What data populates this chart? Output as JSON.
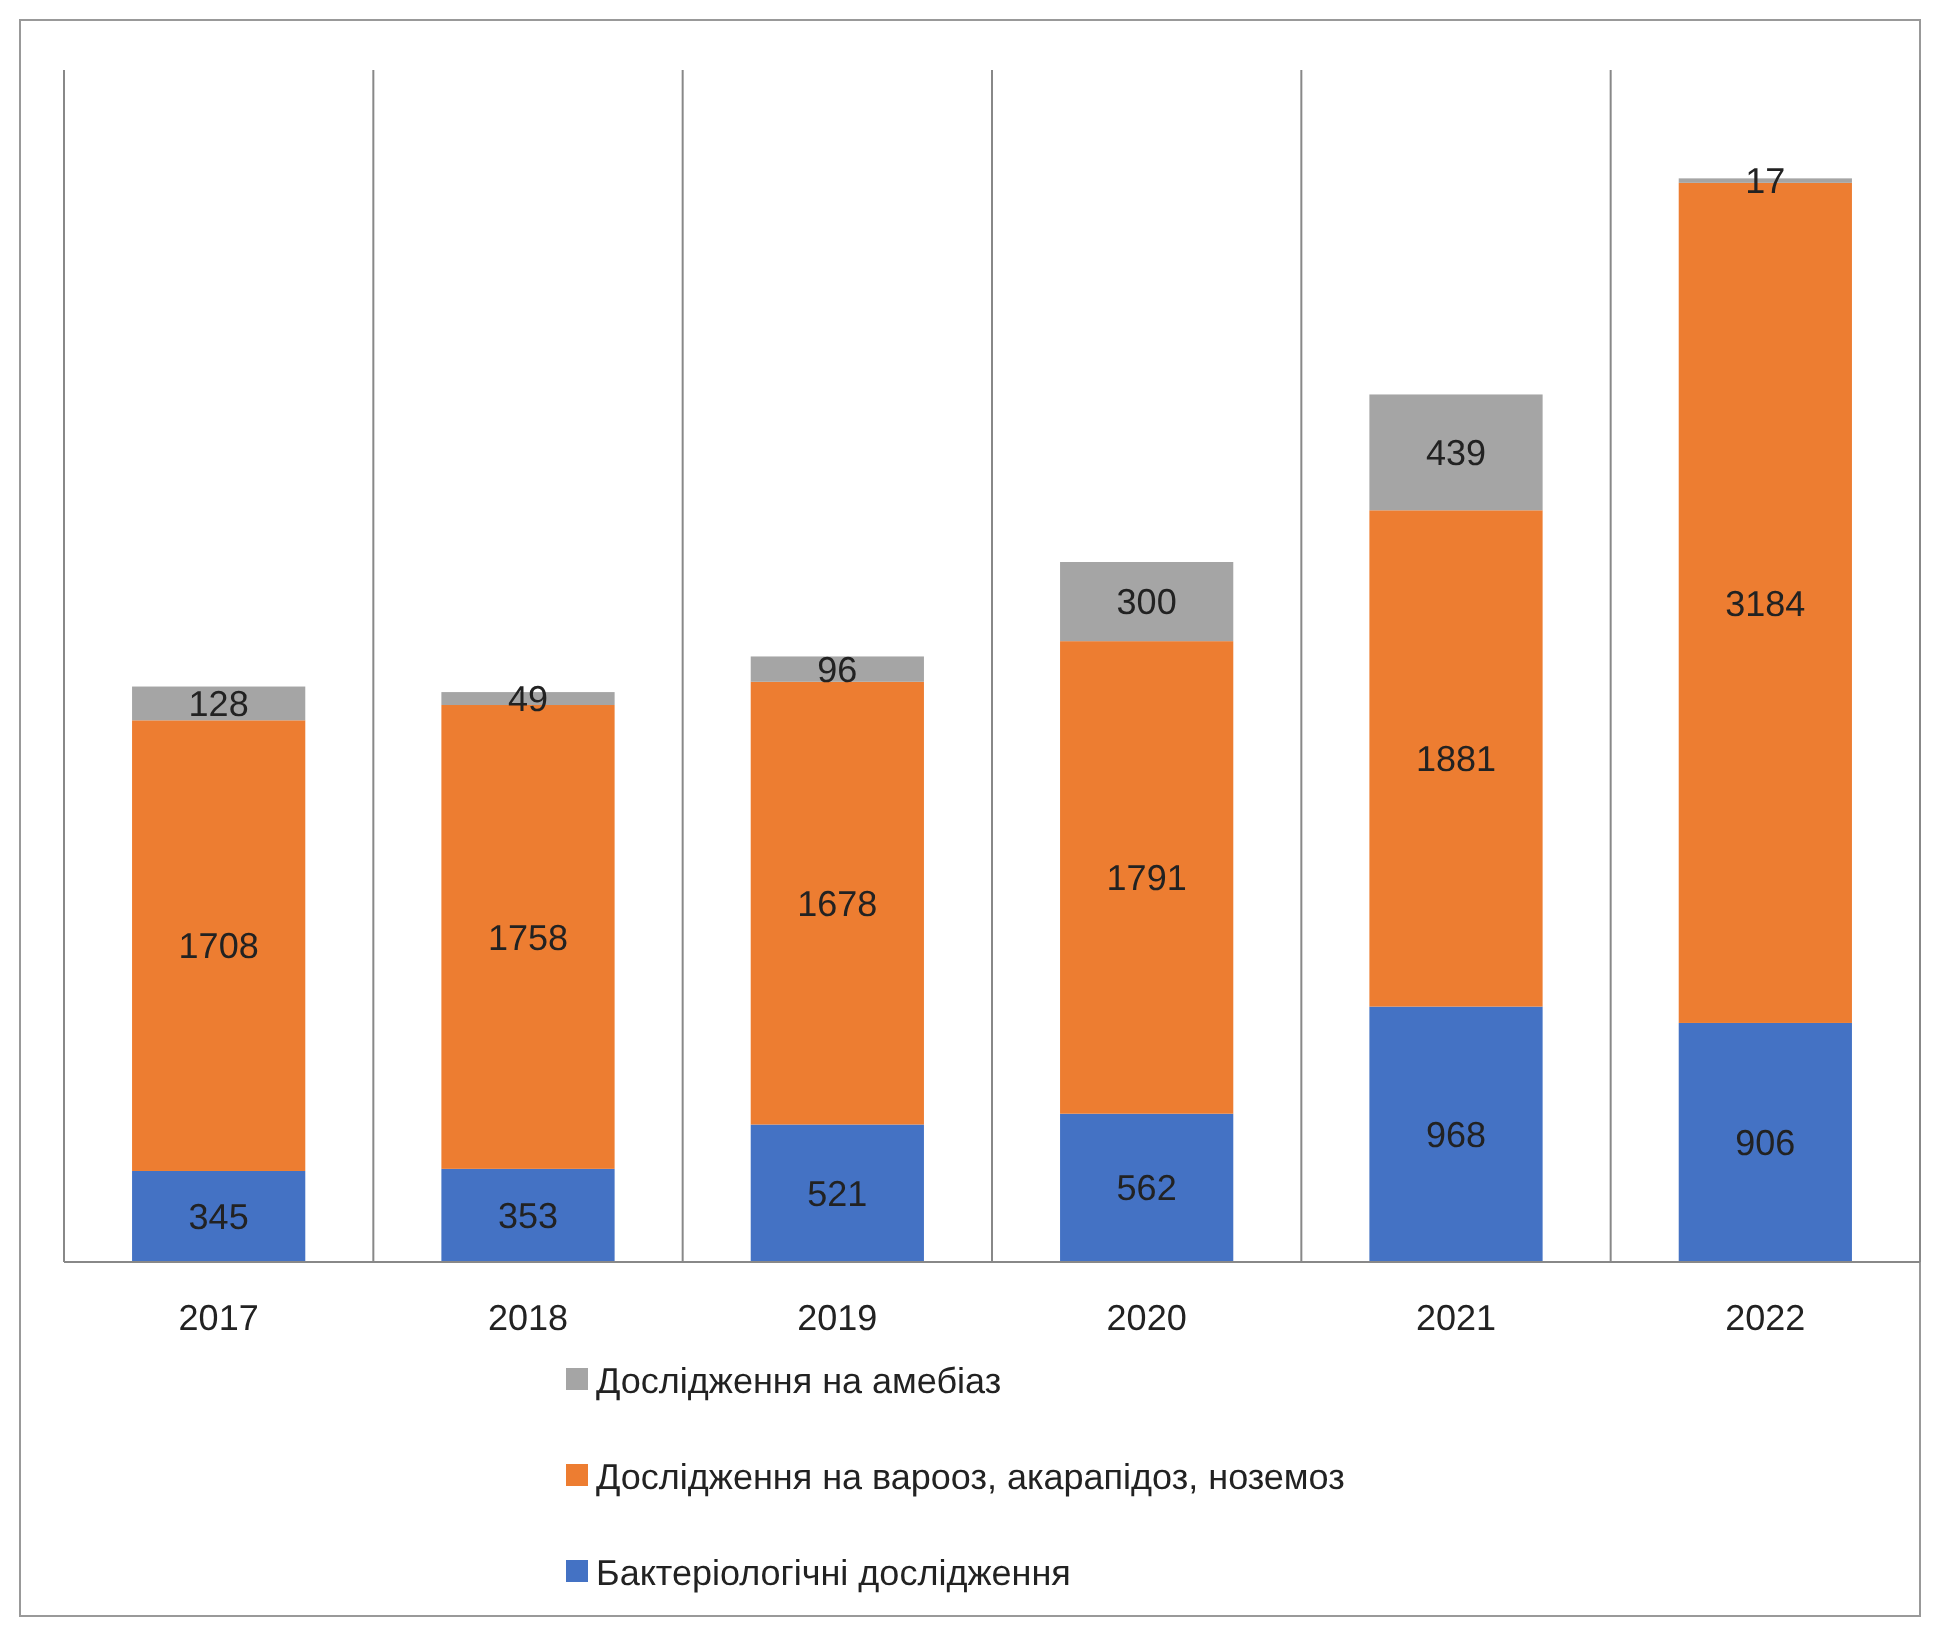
{
  "chart_data": {
    "type": "bar",
    "stacked": true,
    "categories": [
      "2017",
      "2018",
      "2019",
      "2020",
      "2021",
      "2022"
    ],
    "series": [
      {
        "name": "Бактеріологічні дослідження",
        "color": "#4472c4",
        "values": [
          345,
          353,
          521,
          562,
          968,
          906
        ]
      },
      {
        "name": "Дослідження на варооз, акарапідоз, ноземоз",
        "color": "#ed7d31",
        "values": [
          1708,
          1758,
          1678,
          1791,
          1881,
          3184
        ]
      },
      {
        "name": "Дослідження на амебіаз",
        "color": "#a5a5a5",
        "values": [
          128,
          49,
          96,
          300,
          439,
          17
        ]
      }
    ],
    "data_labels": true,
    "grid": "x",
    "legend": "bottom"
  }
}
